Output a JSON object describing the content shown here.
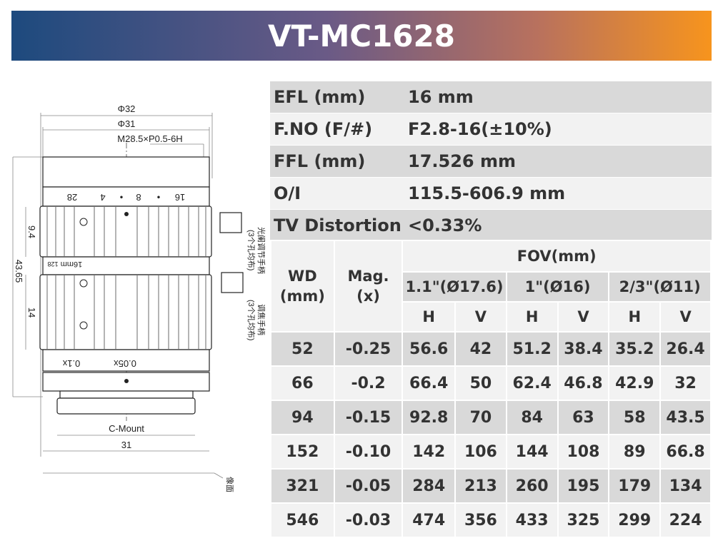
{
  "title": "VT-MC1628",
  "colors": {
    "banner_start": "#1d4a7e",
    "banner_end": "#f7941d",
    "row_dark": "#d9d9d9",
    "row_light": "#f2f2f2"
  },
  "specs": [
    {
      "label": "EFL (mm)",
      "value": "16 mm"
    },
    {
      "label": "F.NO (F/#)",
      "value": "F2.8-16(±10%)"
    },
    {
      "label": "FFL (mm)",
      "value": "17.526 mm"
    },
    {
      "label": "O/I",
      "value": "115.5-606.9 mm"
    },
    {
      "label": "TV Distortion",
      "value": "<0.33%"
    }
  ],
  "fov_table": {
    "wd_header": [
      "WD",
      "(mm)"
    ],
    "mag_header": [
      "Mag.",
      "(x)"
    ],
    "fov_header": "FOV(mm)",
    "sensors": [
      "1.1\"(Ø17.6)",
      "1\"(Ø16)",
      "2/3\"(Ø11)"
    ],
    "hv": [
      "H",
      "V",
      "H",
      "V",
      "H",
      "V"
    ],
    "rows": [
      [
        "52",
        "-0.25",
        "56.6",
        "42",
        "51.2",
        "38.4",
        "35.2",
        "26.4"
      ],
      [
        "66",
        "-0.2",
        "66.4",
        "50",
        "62.4",
        "46.8",
        "42.9",
        "32"
      ],
      [
        "94",
        "-0.15",
        "92.8",
        "70",
        "84",
        "63",
        "58",
        "43.5"
      ],
      [
        "152",
        "-0.10",
        "142",
        "106",
        "144",
        "108",
        "89",
        "66.8"
      ],
      [
        "321",
        "-0.05",
        "284",
        "213",
        "260",
        "195",
        "179",
        "134"
      ],
      [
        "546",
        "-0.03",
        "474",
        "356",
        "433",
        "325",
        "299",
        "224"
      ]
    ]
  },
  "drawing": {
    "dim_outer": "Φ32",
    "dim_inner": "Φ31",
    "thread": "M28.5×P0.5-6H",
    "aperture_scale": [
      "28",
      "4",
      "•",
      "8",
      "•",
      "16"
    ],
    "dim_9_4": "9.4",
    "dim_43_65": "43.65",
    "dim_14": "14",
    "focal_marks": "16mm",
    "focal_small": "128",
    "mag_marks": [
      "0.1x",
      "0.05x"
    ],
    "mount": "C-Mount",
    "dim_31": "31",
    "iris_handle": [
      "光阑调节手柄",
      "(3个孔均布)"
    ],
    "focus_handle": [
      "调焦手柄",
      "(3个孔均布)"
    ],
    "image_plane": "像面"
  }
}
